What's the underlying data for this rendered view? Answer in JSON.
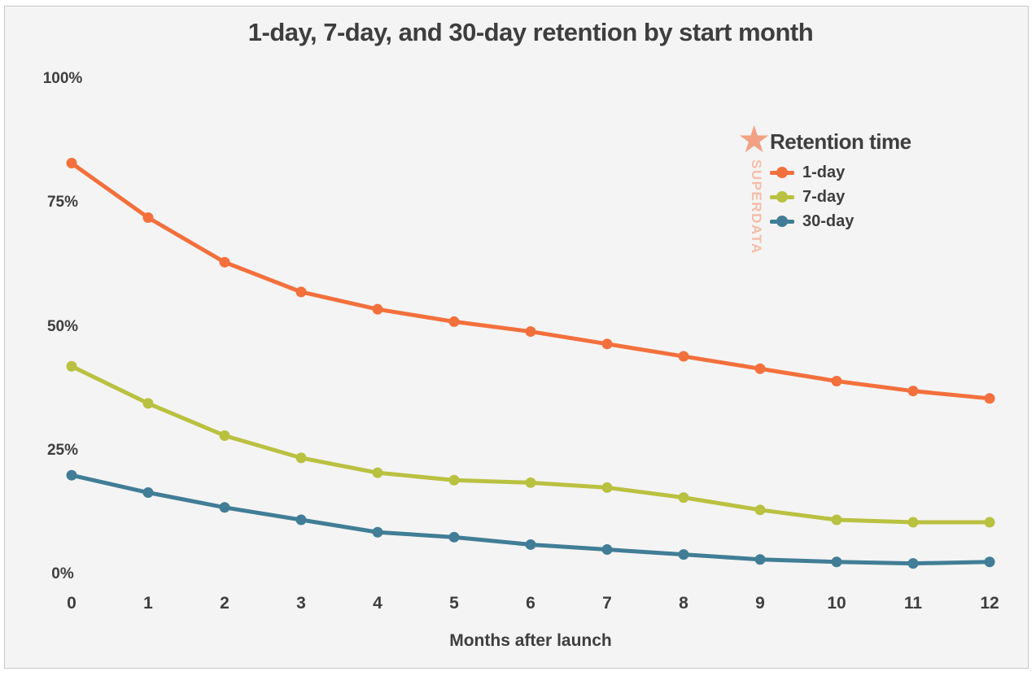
{
  "frame": {
    "background": "#f4f4f4",
    "border_color": "#c7c7c7",
    "text_color": "#3e3e3e"
  },
  "chart_data": {
    "type": "line",
    "title": "1-day, 7-day, and 30-day retention by start month",
    "xlabel": "Months after launch",
    "ylabel": "",
    "categories": [
      0,
      1,
      2,
      3,
      4,
      5,
      6,
      7,
      8,
      9,
      10,
      11,
      12
    ],
    "series": [
      {
        "name": "1-day",
        "color": "#f3703c",
        "values": [
          83,
          72,
          63,
          57,
          53.5,
          51,
          49,
          46.5,
          44,
          41.5,
          39,
          37,
          35.5
        ]
      },
      {
        "name": "7-day",
        "color": "#b9c140",
        "values": [
          42,
          34.5,
          28,
          23.5,
          20.5,
          19,
          18.5,
          17.5,
          15.5,
          13,
          11,
          10.5,
          10.5
        ]
      },
      {
        "name": "30-day",
        "color": "#417d96",
        "values": [
          20,
          16.5,
          13.5,
          11,
          8.5,
          7.5,
          6,
          5,
          4,
          3,
          2.5,
          2.2,
          2.5
        ]
      }
    ],
    "yticks": {
      "labels": [
        "100%",
        "75%",
        "50%",
        "25%",
        "0%"
      ],
      "values": [
        100,
        75,
        50,
        25,
        0
      ]
    },
    "ylim": [
      0,
      100
    ],
    "grid": false,
    "marker": "circle",
    "legend_position": "upper right"
  },
  "legend": {
    "title": "Retention time"
  },
  "watermark": {
    "text": "SUPERDATA",
    "icon": "star",
    "star_color": "#f2a184",
    "text_color": "#f6bca8"
  }
}
